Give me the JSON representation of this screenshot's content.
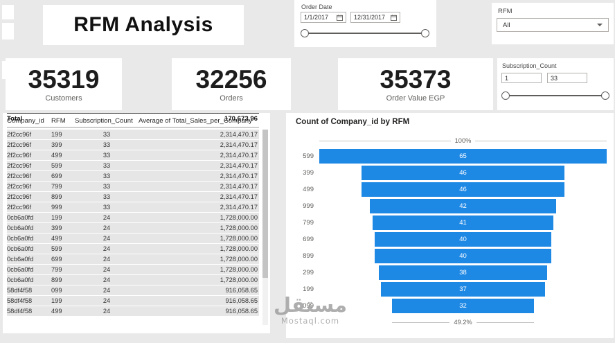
{
  "title": "RFM Analysis",
  "order_date": {
    "label": "Order Date",
    "start_date": "1/1/2017",
    "end_date": "12/31/2017"
  },
  "rfm_filter": {
    "label": "RFM",
    "selected": "All"
  },
  "kpis": [
    {
      "value": "35319",
      "label": "Customers"
    },
    {
      "value": "32256",
      "label": "Orders"
    },
    {
      "value": "35373",
      "label": "Order Value EGP"
    }
  ],
  "subscription_slicer": {
    "label": "Subscription_Count",
    "min_value": "1",
    "max_value": "33"
  },
  "table": {
    "columns": [
      "Company_id",
      "RFM",
      "Subscription_Count",
      "Average of Total_Sales_per_Company"
    ],
    "rows": [
      [
        "2f2cc96f",
        "199",
        "33",
        "2,314,470.17"
      ],
      [
        "2f2cc96f",
        "399",
        "33",
        "2,314,470.17"
      ],
      [
        "2f2cc96f",
        "499",
        "33",
        "2,314,470.17"
      ],
      [
        "2f2cc96f",
        "599",
        "33",
        "2,314,470.17"
      ],
      [
        "2f2cc96f",
        "699",
        "33",
        "2,314,470.17"
      ],
      [
        "2f2cc96f",
        "799",
        "33",
        "2,314,470.17"
      ],
      [
        "2f2cc96f",
        "899",
        "33",
        "2,314,470.17"
      ],
      [
        "2f2cc96f",
        "999",
        "33",
        "2,314,470.17"
      ],
      [
        "0cb6a0fd",
        "199",
        "24",
        "1,728,000.00"
      ],
      [
        "0cb6a0fd",
        "399",
        "24",
        "1,728,000.00"
      ],
      [
        "0cb6a0fd",
        "499",
        "24",
        "1,728,000.00"
      ],
      [
        "0cb6a0fd",
        "599",
        "24",
        "1,728,000.00"
      ],
      [
        "0cb6a0fd",
        "699",
        "24",
        "1,728,000.00"
      ],
      [
        "0cb6a0fd",
        "799",
        "24",
        "1,728,000.00"
      ],
      [
        "0cb6a0fd",
        "899",
        "24",
        "1,728,000.00"
      ],
      [
        "58df4f58",
        "099",
        "24",
        "916,058.65"
      ],
      [
        "58df4f58",
        "199",
        "24",
        "916,058.65"
      ],
      [
        "58df4f58",
        "499",
        "24",
        "916,058.65"
      ]
    ],
    "total_label": "Total",
    "total_value": "170,673.96"
  },
  "chart_data": {
    "type": "funnel",
    "title": "Count of Company_id by RFM",
    "categories": [
      "599",
      "399",
      "499",
      "999",
      "799",
      "699",
      "899",
      "299",
      "199",
      "099"
    ],
    "values": [
      65,
      46,
      46,
      42,
      41,
      40,
      40,
      38,
      37,
      32
    ],
    "max_value": 65,
    "first_label": "100%",
    "last_label": "49.2%",
    "bar_color": "#1E88E5"
  },
  "watermark": {
    "arabic": "مستقل",
    "latin": "Mostaql.com"
  }
}
